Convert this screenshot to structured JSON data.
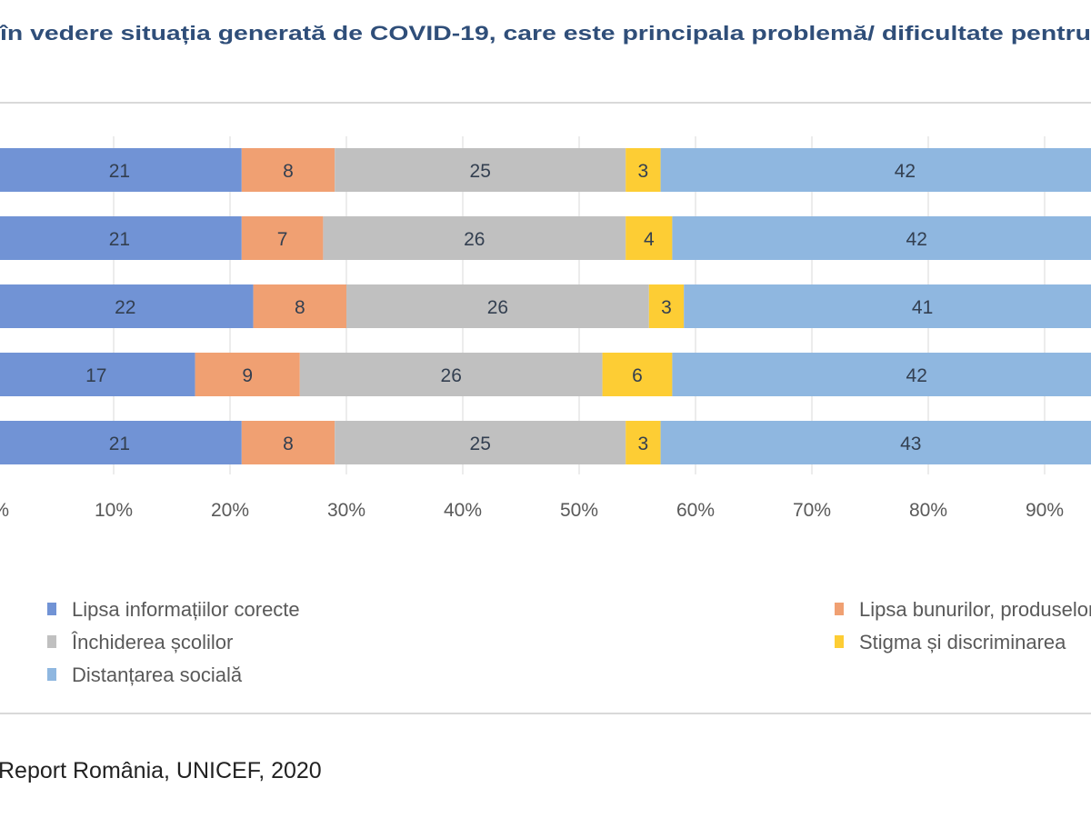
{
  "chart_data": {
    "type": "bar",
    "orientation": "horizontal",
    "stacked": true,
    "percent_stacked": true,
    "title": "în vedere situația generată de COVID-19, care este principala problemă/ dificultate pentru",
    "source": "Report România, UNICEF, 2020",
    "xlim": [
      0,
      100
    ],
    "x_ticks": [
      "%",
      "10%",
      "20%",
      "30%",
      "40%",
      "50%",
      "60%",
      "70%",
      "80%",
      "90%"
    ],
    "grid": true,
    "legend_position": "bottom",
    "series": [
      {
        "name": "Lipsa informațiilor corecte",
        "color": "#7193d5",
        "values": [
          21,
          21,
          22,
          17,
          21
        ]
      },
      {
        "name": "Lipsa bunurilor, produselor și serviciilor",
        "color": "#f0a072",
        "values": [
          8,
          7,
          8,
          9,
          8
        ]
      },
      {
        "name": "Închiderea școlilor",
        "color": "#c0c0c0",
        "values": [
          25,
          26,
          26,
          26,
          25
        ]
      },
      {
        "name": "Stigma și discriminarea",
        "color": "#fdcd34",
        "values": [
          3,
          4,
          3,
          6,
          3
        ]
      },
      {
        "name": "Distanțarea socială",
        "color": "#8fb7e0",
        "values": [
          42,
          42,
          41,
          42,
          43
        ]
      }
    ]
  }
}
